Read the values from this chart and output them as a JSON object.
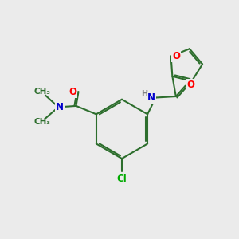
{
  "background_color": "#ebebeb",
  "bond_color": "#2d6e2d",
  "atom_colors": {
    "O": "#ff0000",
    "N": "#0000cc",
    "Cl": "#00aa00",
    "H": "#808080",
    "C": "#2d6e2d"
  },
  "line_width": 1.5,
  "font_size_atom": 8.5,
  "font_size_methyl": 7.5,
  "dbo": 0.07
}
